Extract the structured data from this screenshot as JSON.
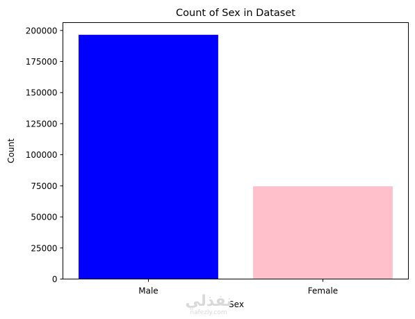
{
  "chart_data": {
    "type": "bar",
    "title": "Count of Sex in Dataset",
    "xlabel": "Sex",
    "ylabel": "Count",
    "categories": [
      "Male",
      "Female"
    ],
    "values": [
      196500,
      74600
    ],
    "colors": [
      "#0000ff",
      "#ffc0cb"
    ],
    "ylim": [
      0,
      206325
    ],
    "yticks": [
      0,
      25000,
      50000,
      75000,
      100000,
      125000,
      150000,
      175000,
      200000
    ],
    "grid": false,
    "legend": "none"
  },
  "watermark": {
    "arabic": "نفذلي",
    "latin": "nafezly.com"
  }
}
